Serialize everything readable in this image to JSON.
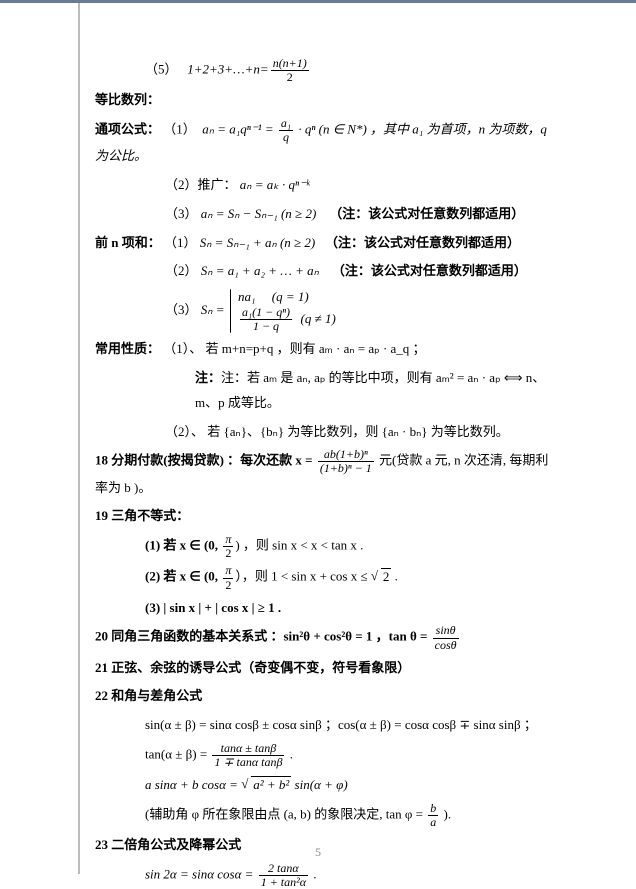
{
  "line1_label": "（5）",
  "line1_lhs": "1+2+3+…+n=",
  "line1_num": "n(n+1)",
  "line1_den": "2",
  "geo_title": "等比数列：",
  "general_label": "通项公式：",
  "g1_label": "（1）",
  "g1_body1": "aₙ = a₁qⁿ⁻¹ = ",
  "g1_num": "a₁",
  "g1_den": "q",
  "g1_body2": " · qⁿ (n ∈ N*) ，其中 a₁ 为首项，n 为项数，q 为公比。",
  "g2_label": "（2）推广：",
  "g2_body": "aₙ = aₖ · qⁿ⁻ᵏ",
  "g3_label": "（3）",
  "g3_body": "aₙ = Sₙ − Sₙ₋₁ (n ≥ 2)",
  "g3_note": "（注：该公式对任意数列都适用）",
  "sum_label": "前 n 项和：",
  "s1_label": "（1）",
  "s1_body": "Sₙ = Sₙ₋₁ + aₙ (n ≥ 2)",
  "s1_note": "（注：该公式对任意数列都适用）",
  "s2_label": "（2）",
  "s2_body": "Sₙ = a₁ + a₂ + … + aₙ",
  "s2_note": "（注：该公式对任意数列都适用）",
  "s3_label": "（3）",
  "s3_lhs": "Sₙ = ",
  "s3_c1a": "na₁",
  "s3_c1b": "(q = 1)",
  "s3_c2num": "a₁(1 − qⁿ)",
  "s3_c2den": "1 − q",
  "s3_c2b": "(q ≠ 1)",
  "prop_label": "常用性质：",
  "p1_label": "（1）、",
  "p1_body": "若 m+n=p+q ，则有 aₘ · aₙ = aₚ · a_q ；",
  "p1_note": "注：若 aₘ 是 aₙ, aₚ 的等比中项，则有 aₘ² = aₙ · aₚ ⟺ n、m、p 成等比。",
  "p2_label": "（2）、",
  "p2_body": "若 {aₙ}、{bₙ} 为等比数列，则 {aₙ · bₙ} 为等比数列。",
  "n18_label": "18",
  "n18_body1": " 分期付款(按揭贷款) ：每次还款 x = ",
  "n18_num": "ab(1+b)ⁿ",
  "n18_den": "(1+b)ⁿ − 1",
  "n18_body2": " 元(贷款 a 元, n 次还清, 每期利率为 b )。",
  "n19_label": "19",
  "n19_title": " 三角不等式：",
  "n19_1": "(1) 若 x ∈ (0, ",
  "n19_1_num": "π",
  "n19_1_den": "2",
  "n19_1b": ") ，则 sin x < x < tan x .",
  "n19_2": "(2) 若 x ∈ (0, ",
  "n19_2b": "），则 1 < sin x + cos x ≤ ",
  "n19_2rad": "2",
  "n19_2c": " .",
  "n19_3": "(3) | sin x | + | cos x | ≥ 1 .",
  "n20_label": "20",
  "n20_body1": " 同角三角函数的基本关系式 ：sin²θ + cos²θ = 1 ，tan θ = ",
  "n20_num": "sinθ",
  "n20_den": "cosθ",
  "n21": "21 正弦、余弦的诱导公式（奇变偶不变，符号看象限）",
  "n22": "22 和角与差角公式",
  "n22_1": "sin(α ± β) = sinα cosβ ± cosα sinβ ；cos(α ± β) = cosα cosβ ∓ sinα sinβ ；",
  "n22_2a": "tan(α ± β) = ",
  "n22_2num": "tanα ± tanβ",
  "n22_2den": "1 ∓ tanα tanβ",
  "n22_2b": " .",
  "n22_3a": "a sinα + b cosα = ",
  "n22_3rad": "a² + b²",
  "n22_3b": " sin(α + φ)",
  "n22_4a": "(辅助角 φ 所在象限由点 (a, b) 的象限决定, tan φ = ",
  "n22_4num": "b",
  "n22_4den": "a",
  "n22_4b": " ).",
  "n23_label": "23",
  "n23_title": " 二倍角公式及降幂公式",
  "n23_1a": "sin 2α = sinα cosα = ",
  "n23_1num": "2 tanα",
  "n23_1den": "1 + tan²α",
  "n23_1b": " .",
  "page_number": "5"
}
